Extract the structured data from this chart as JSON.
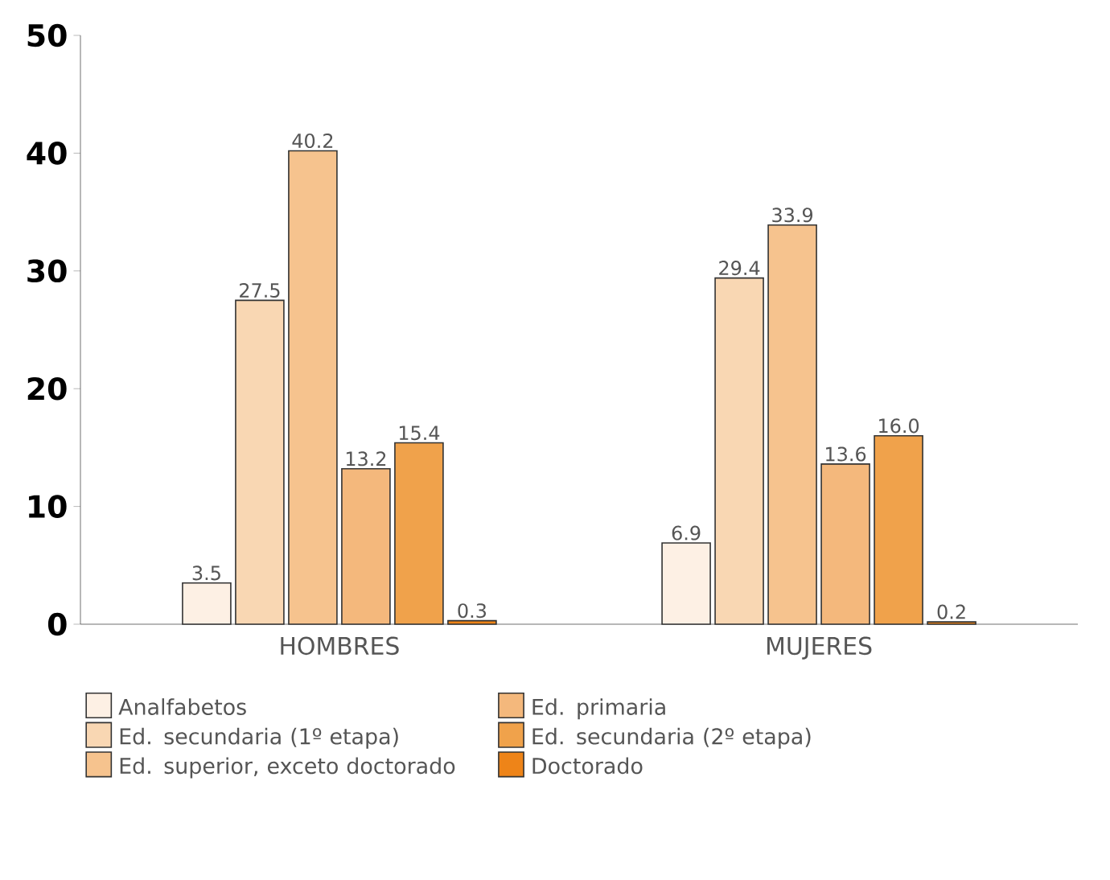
{
  "chart_data": {
    "type": "bar",
    "categories": [
      "HOMBRES",
      "MUJERES"
    ],
    "series": [
      {
        "name": "Analfabetos",
        "color": "#fdf0e4",
        "values": [
          3.5,
          6.9
        ],
        "value_labels": [
          "3.5",
          "6.9"
        ]
      },
      {
        "name": "Ed. secundaria (1º etapa)",
        "color": "#f9d7b3",
        "values": [
          27.5,
          29.4
        ],
        "value_labels": [
          "27.5",
          "29.4"
        ]
      },
      {
        "name": "Ed. superior, exceto doctorado",
        "color": "#f6c38e",
        "values": [
          40.2,
          33.9
        ],
        "value_labels": [
          "40.2",
          "33.9"
        ]
      },
      {
        "name": "Ed. primaria",
        "color": "#f4b87c",
        "values": [
          13.2,
          13.6
        ],
        "value_labels": [
          "13.2",
          "13.6"
        ]
      },
      {
        "name": "Ed. secundaria (2º etapa)",
        "color": "#f0a24b",
        "values": [
          15.4,
          16.0
        ],
        "value_labels": [
          "15.4",
          "16.0"
        ]
      },
      {
        "name": "Doctorado",
        "color": "#ee8418",
        "values": [
          0.3,
          0.2
        ],
        "value_labels": [
          "0.3",
          "0.2"
        ]
      }
    ],
    "ylim": [
      0,
      50
    ],
    "yticks": [
      0,
      10,
      20,
      30,
      40,
      50
    ],
    "legend": "bottom",
    "grid": false
  }
}
